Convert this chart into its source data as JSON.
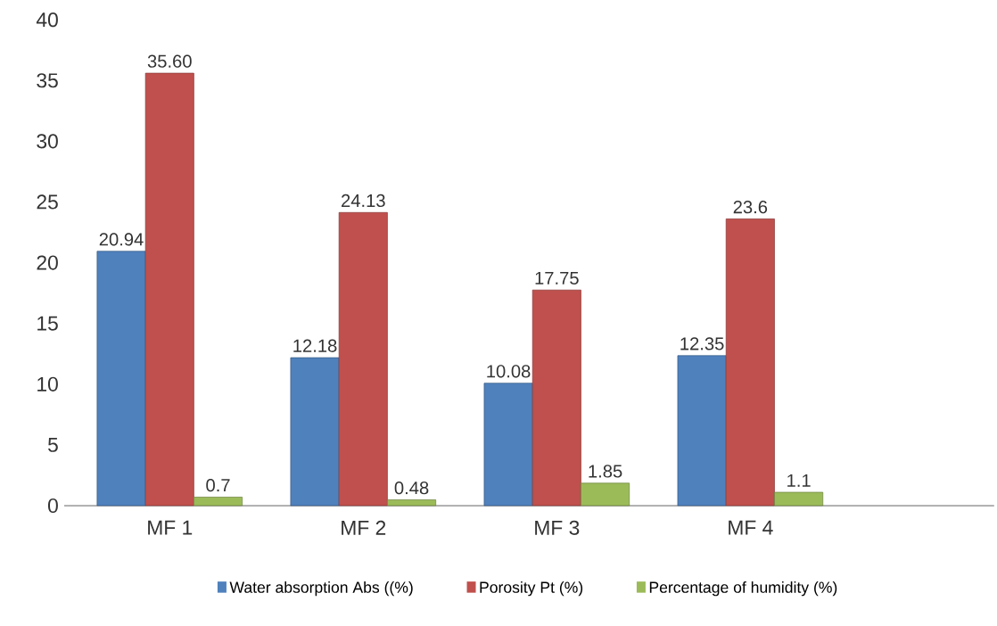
{
  "chart_data": {
    "type": "bar",
    "categories": [
      "MF 1",
      "MF 2",
      "MF 3",
      "MF 4"
    ],
    "series": [
      {
        "name": "Water absorption Abs ((%)",
        "color": "#4f81bd",
        "values": [
          20.94,
          12.18,
          10.08,
          12.35
        ],
        "value_labels": [
          "20.94",
          "12.18",
          "10.08",
          "12.35"
        ]
      },
      {
        "name": "Porosity Pt (%)",
        "color": "#c0504d",
        "values": [
          35.6,
          24.13,
          17.75,
          23.6
        ],
        "value_labels": [
          "35.60",
          "24.13",
          "17.75",
          "23.6"
        ]
      },
      {
        "name": "Percentage of humidity (%)",
        "color": "#9bbb59",
        "values": [
          0.7,
          0.48,
          1.85,
          1.1
        ],
        "value_labels": [
          "0.7",
          "0.48",
          "1.85",
          "1.1"
        ]
      }
    ],
    "ylim": [
      0,
      40
    ],
    "yticks": [
      0,
      5,
      10,
      15,
      20,
      25,
      30,
      35,
      40
    ],
    "grid": false,
    "legend": "bottom"
  }
}
